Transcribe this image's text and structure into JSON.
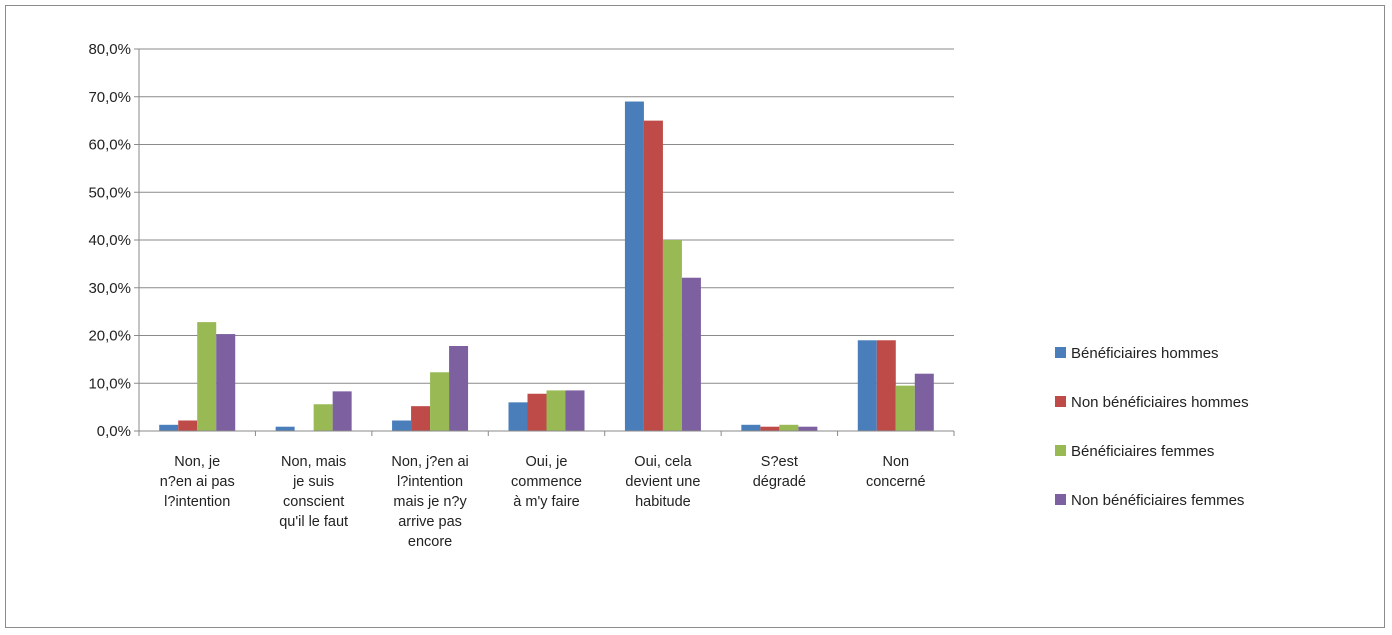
{
  "chart_data": {
    "type": "bar",
    "categories": [
      [
        "Non, je",
        "n?en ai pas",
        "l?intention"
      ],
      [
        "Non, mais",
        "je suis",
        "conscient",
        "qu'il le faut"
      ],
      [
        "Non, j?en ai",
        "l?intention",
        "mais je n?y",
        "arrive pas",
        "encore"
      ],
      [
        "Oui, je",
        "commence",
        "à m'y faire"
      ],
      [
        "Oui, cela",
        "devient une",
        "habitude"
      ],
      [
        "S?est",
        "dégradé"
      ],
      [
        "Non",
        "concerné"
      ]
    ],
    "series": [
      {
        "name": "Bénéficiaires hommes",
        "color": "#4a7ebb",
        "values": [
          1.3,
          0.9,
          2.2,
          6.0,
          69.0,
          1.3,
          19.0
        ]
      },
      {
        "name": "Non bénéficiaires hommes",
        "color": "#be4b48",
        "values": [
          2.2,
          0.0,
          5.2,
          7.8,
          65.0,
          0.9,
          19.0
        ]
      },
      {
        "name": "Bénéficiaires femmes",
        "color": "#98b954",
        "values": [
          22.8,
          5.6,
          12.3,
          8.5,
          40.0,
          1.3,
          9.5
        ]
      },
      {
        "name": "Non bénéficiaires femmes",
        "color": "#7d60a0",
        "values": [
          20.3,
          8.3,
          17.8,
          8.5,
          32.1,
          0.9,
          12.0
        ]
      }
    ],
    "yticks": [
      "0,0%",
      "10,0%",
      "20,0%",
      "30,0%",
      "40,0%",
      "50,0%",
      "60,0%",
      "70,0%",
      "80,0%"
    ],
    "ylim": [
      0,
      80
    ],
    "grid": true,
    "legend_position": "right"
  }
}
